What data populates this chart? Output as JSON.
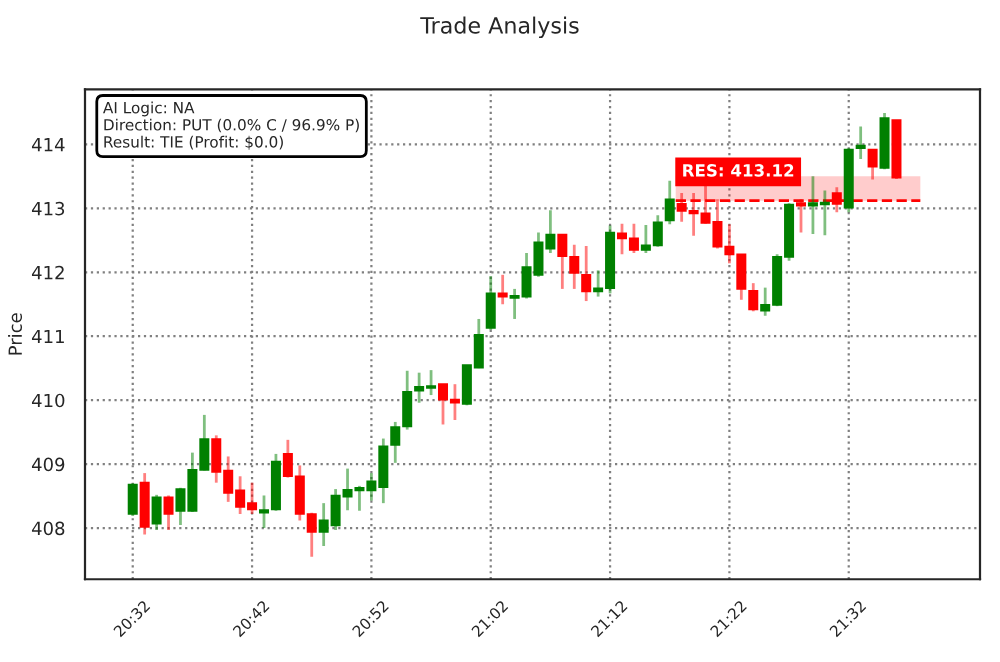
{
  "chart_data": {
    "type": "candlestick",
    "title": "Trade Analysis",
    "ylabel": "Price",
    "categories": [
      "20:32",
      null,
      null,
      null,
      null,
      null,
      null,
      null,
      null,
      null,
      "20:42",
      null,
      null,
      null,
      null,
      null,
      null,
      null,
      null,
      null,
      "20:52",
      null,
      null,
      null,
      null,
      null,
      null,
      null,
      null,
      null,
      "21:02",
      null,
      null,
      null,
      null,
      null,
      null,
      null,
      null,
      null,
      "21:12",
      null,
      null,
      null,
      null,
      null,
      null,
      null,
      null,
      null,
      "21:22",
      null,
      null,
      null,
      null,
      null,
      null,
      null,
      null,
      null,
      "21:32",
      null,
      null,
      null,
      null
    ],
    "ohlc": [
      [
        408.22,
        408.7,
        408.19,
        408.68
      ],
      [
        408.71,
        408.86,
        407.9,
        408.02
      ],
      [
        408.07,
        408.52,
        407.97,
        408.48
      ],
      [
        408.48,
        408.51,
        407.97,
        408.22
      ],
      [
        408.27,
        408.63,
        408.05,
        408.61
      ],
      [
        408.27,
        409.18,
        408.25,
        408.91
      ],
      [
        408.91,
        409.77,
        408.9,
        409.39
      ],
      [
        409.39,
        409.45,
        408.71,
        408.88
      ],
      [
        408.9,
        409.12,
        408.41,
        408.55
      ],
      [
        408.59,
        408.81,
        408.22,
        408.33
      ],
      [
        408.39,
        408.71,
        408.22,
        408.29
      ],
      [
        408.24,
        408.51,
        408.0,
        408.28
      ],
      [
        408.29,
        409.16,
        408.27,
        409.04
      ],
      [
        409.16,
        409.38,
        408.79,
        408.81
      ],
      [
        408.81,
        408.98,
        408.12,
        408.22
      ],
      [
        408.22,
        408.24,
        407.55,
        407.94
      ],
      [
        407.94,
        408.39,
        407.72,
        408.12
      ],
      [
        408.04,
        408.61,
        407.97,
        408.51
      ],
      [
        408.49,
        408.93,
        408.28,
        408.6
      ],
      [
        408.59,
        408.66,
        408.27,
        408.63
      ],
      [
        408.59,
        408.86,
        408.43,
        408.73
      ],
      [
        408.64,
        409.4,
        408.39,
        409.28
      ],
      [
        409.3,
        409.66,
        409.02,
        409.58
      ],
      [
        409.59,
        410.46,
        409.54,
        410.13
      ],
      [
        410.15,
        410.43,
        409.96,
        410.21
      ],
      [
        410.19,
        410.47,
        410.08,
        410.22
      ],
      [
        410.25,
        410.25,
        409.62,
        410.01
      ],
      [
        410.01,
        410.25,
        409.69,
        409.96
      ],
      [
        409.94,
        410.55,
        409.92,
        410.55
      ],
      [
        410.51,
        411.27,
        410.5,
        411.02
      ],
      [
        411.13,
        411.94,
        411.1,
        411.67
      ],
      [
        411.67,
        411.96,
        411.5,
        411.62
      ],
      [
        411.6,
        411.74,
        411.27,
        411.63
      ],
      [
        411.62,
        412.3,
        411.59,
        412.08
      ],
      [
        411.96,
        412.62,
        411.93,
        412.47
      ],
      [
        412.37,
        412.97,
        412.3,
        412.59
      ],
      [
        412.59,
        412.59,
        411.74,
        412.25
      ],
      [
        412.24,
        412.43,
        411.74,
        411.99
      ],
      [
        411.96,
        412.41,
        411.55,
        411.7
      ],
      [
        411.7,
        412.03,
        411.62,
        411.75
      ],
      [
        411.75,
        412.73,
        411.67,
        412.62
      ],
      [
        412.61,
        412.76,
        412.28,
        412.53
      ],
      [
        412.53,
        412.76,
        412.3,
        412.35
      ],
      [
        412.35,
        412.74,
        412.3,
        412.42
      ],
      [
        412.42,
        412.89,
        412.4,
        412.78
      ],
      [
        412.81,
        413.43,
        412.75,
        413.14
      ],
      [
        413.07,
        413.24,
        412.79,
        412.96
      ],
      [
        412.96,
        413.24,
        412.57,
        412.92
      ],
      [
        412.92,
        413.38,
        412.76,
        412.77
      ],
      [
        412.79,
        413.14,
        412.37,
        412.4
      ],
      [
        412.4,
        412.75,
        412.14,
        412.28
      ],
      [
        412.28,
        412.28,
        411.57,
        411.74
      ],
      [
        411.71,
        411.83,
        411.39,
        411.42
      ],
      [
        411.4,
        411.76,
        411.32,
        411.49
      ],
      [
        411.49,
        412.28,
        411.47,
        412.24
      ],
      [
        412.24,
        413.08,
        412.18,
        413.06
      ],
      [
        413.08,
        413.14,
        412.62,
        413.04
      ],
      [
        413.04,
        413.5,
        412.6,
        413.08
      ],
      [
        413.06,
        413.28,
        412.58,
        413.09
      ],
      [
        413.24,
        413.33,
        412.94,
        413.07
      ],
      [
        413.01,
        413.94,
        412.94,
        413.92
      ],
      [
        413.94,
        414.28,
        413.77,
        413.98
      ],
      [
        413.92,
        413.92,
        413.45,
        413.65
      ],
      [
        413.63,
        414.49,
        413.61,
        414.41
      ],
      [
        414.38,
        414.38,
        413.46,
        413.48
      ]
    ],
    "colors": [
      "#008000",
      "#ff0000",
      "#008000",
      "#ff0000",
      "#008000",
      "#008000",
      "#008000",
      "#ff0000",
      "#ff0000",
      "#ff0000",
      "#ff0000",
      "#008000",
      "#008000",
      "#ff0000",
      "#ff0000",
      "#ff0000",
      "#008000",
      "#008000",
      "#008000",
      "#008000",
      "#008000",
      "#008000",
      "#008000",
      "#008000",
      "#008000",
      "#008000",
      "#ff0000",
      "#ff0000",
      "#008000",
      "#008000",
      "#008000",
      "#ff0000",
      "#008000",
      "#008000",
      "#008000",
      "#008000",
      "#ff0000",
      "#ff0000",
      "#ff0000",
      "#008000",
      "#008000",
      "#ff0000",
      "#ff0000",
      "#008000",
      "#008000",
      "#008000",
      "#ff0000",
      "#ff0000",
      "#ff0000",
      "#ff0000",
      "#ff0000",
      "#ff0000",
      "#ff0000",
      "#008000",
      "#008000",
      "#008000",
      "#ff0000",
      "#008000",
      "#008000",
      "#ff0000",
      "#008000",
      "#008000",
      "#ff0000",
      "#008000",
      "#ff0000"
    ],
    "ylim": [
      407.2,
      414.86
    ],
    "yticks": [
      408,
      409,
      410,
      411,
      412,
      413,
      414
    ],
    "grid": true,
    "ref_lines": [
      {
        "axis": "y",
        "value": 413.12,
        "label": "RES: 413.12",
        "color": "#ff0000",
        "line_style": "dashed"
      }
    ],
    "bands": [
      {
        "axis": "y",
        "from": 413.12,
        "to": 413.5,
        "color": "#ff0000"
      }
    ],
    "annotations": [
      "AI Logic: NA\nDirection: PUT (0.0% C / 96.9% P)\nResult: TIE (Profit: $0.0)"
    ]
  }
}
